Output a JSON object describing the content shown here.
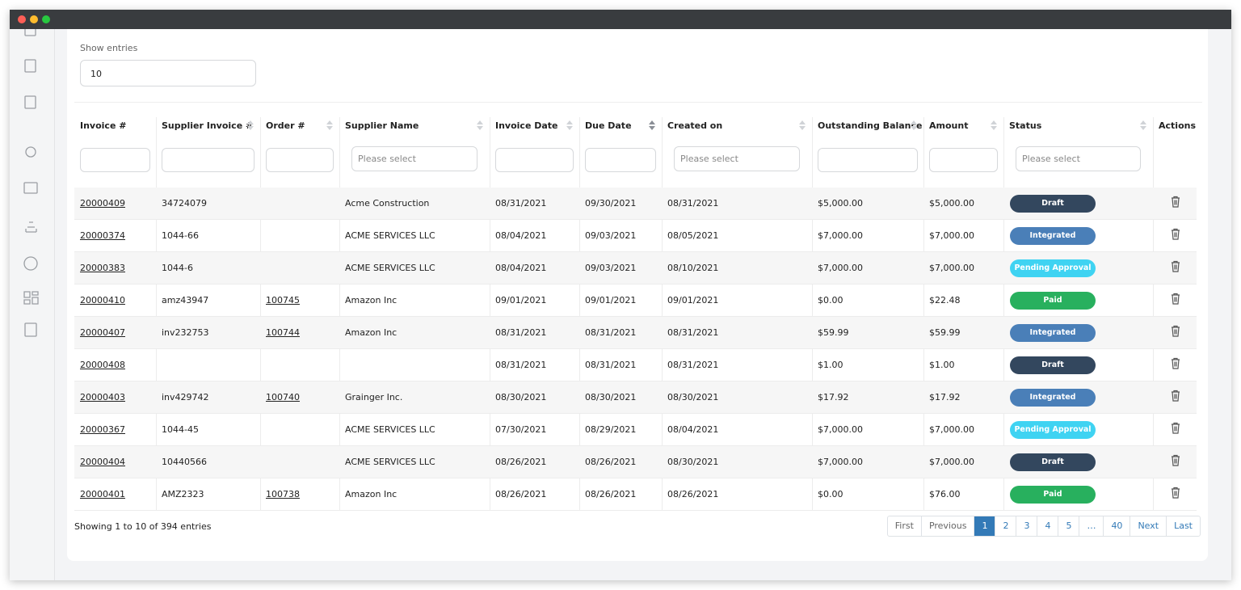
{
  "show_entries": {
    "label": "Show entries",
    "value": "10"
  },
  "table": {
    "headers": [
      "Invoice #",
      "Supplier Invoice #",
      "Order #",
      "Supplier Name",
      "Invoice Date",
      "Due Date",
      "Created on",
      "Outstanding Balance",
      "Amount",
      "Status",
      "Actions"
    ],
    "filters": [
      null,
      null,
      null,
      "Please select",
      null,
      null,
      "Please select",
      null,
      null,
      "Please select",
      null
    ],
    "rows": [
      {
        "cells": [
          "20000409",
          "34724079",
          null,
          "Acme Construction",
          "08/31/2021",
          "09/30/2021",
          "08/31/2021",
          "$5,000.00",
          "$5,000.00"
        ],
        "status": {
          "text": "Draft",
          "color": "#33475e"
        }
      },
      {
        "cells": [
          "20000374",
          "1044-66",
          null,
          "ACME SERVICES LLC",
          "08/04/2021",
          "09/03/2021",
          "08/05/2021",
          "$7,000.00",
          "$7,000.00"
        ],
        "status": {
          "text": "Integrated",
          "color": "#4a7fb8"
        }
      },
      {
        "cells": [
          "20000383",
          "1044-6",
          null,
          "ACME SERVICES LLC",
          "08/04/2021",
          "09/03/2021",
          "08/10/2021",
          "$7,000.00",
          "$7,000.00"
        ],
        "status": {
          "text": "Pending Approval",
          "color": "#3fd3f2"
        }
      },
      {
        "cells": [
          "20000410",
          "amz43947",
          "100745",
          "Amazon Inc",
          "09/01/2021",
          "09/01/2021",
          "09/01/2021",
          "$0.00",
          "$22.48"
        ],
        "status": {
          "text": "Paid",
          "color": "#28b05e"
        }
      },
      {
        "cells": [
          "20000407",
          "inv232753",
          "100744",
          "Amazon Inc",
          "08/31/2021",
          "08/31/2021",
          "08/31/2021",
          "$59.99",
          "$59.99"
        ],
        "status": {
          "text": "Integrated",
          "color": "#4a7fb8"
        }
      },
      {
        "cells": [
          "20000408",
          null,
          null,
          null,
          "08/31/2021",
          "08/31/2021",
          "08/31/2021",
          "$1.00",
          "$1.00"
        ],
        "status": {
          "text": "Draft",
          "color": "#33475e"
        }
      },
      {
        "cells": [
          "20000403",
          "inv429742",
          "100740",
          "Grainger Inc.",
          "08/30/2021",
          "08/30/2021",
          "08/30/2021",
          "$17.92",
          "$17.92"
        ],
        "status": {
          "text": "Integrated",
          "color": "#4a7fb8"
        }
      },
      {
        "cells": [
          "20000367",
          "1044-45",
          null,
          "ACME SERVICES LLC",
          "07/30/2021",
          "08/29/2021",
          "08/04/2021",
          "$7,000.00",
          "$7,000.00"
        ],
        "status": {
          "text": "Pending Approval",
          "color": "#3fd3f2"
        }
      },
      {
        "cells": [
          "20000404",
          "10440566",
          null,
          "ACME SERVICES LLC",
          "08/26/2021",
          "08/26/2021",
          "08/30/2021",
          "$7,000.00",
          "$7,000.00"
        ],
        "status": {
          "text": "Draft",
          "color": "#33475e"
        }
      },
      {
        "cells": [
          "20000401",
          "AMZ2323",
          "100738",
          "Amazon Inc",
          "08/26/2021",
          "08/26/2021",
          "08/26/2021",
          "$0.00",
          "$76.00"
        ],
        "status": {
          "text": "Paid",
          "color": "#28b05e"
        }
      }
    ]
  },
  "footer": {
    "summary": "Showing 1 to 10 of 394 entries"
  },
  "pagination": [
    "First",
    "Previous",
    "1",
    "2",
    "3",
    "4",
    "5",
    "…",
    "40",
    "Next",
    "Last"
  ]
}
